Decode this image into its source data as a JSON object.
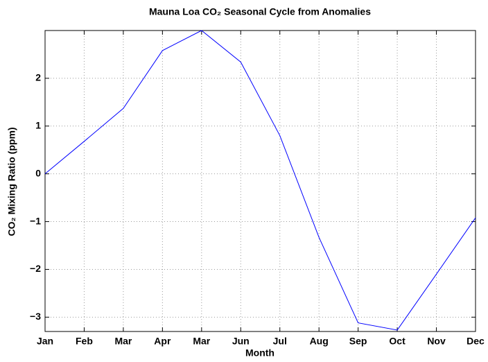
{
  "chart_data": {
    "type": "line",
    "title": "Mauna Loa CO₂ Seasonal Cycle from Anomalies",
    "x_label": "Month",
    "y_label": "CO₂ Mixing Ratio (ppm)",
    "categories": [
      "Jan",
      "Feb",
      "Mar",
      "Apr",
      "Mar",
      "Jun",
      "Jul",
      "Aug",
      "Sep",
      "Oct",
      "Nov",
      "Dec"
    ],
    "series": [
      {
        "color": "#0000ff",
        "values": [
          0,
          0.68,
          1.37,
          2.58,
          3.0,
          2.34,
          0.8,
          -1.33,
          -3.12,
          -3.27,
          -2.1,
          -0.92
        ]
      }
    ],
    "ylim": [
      -3.3,
      3.0
    ],
    "yticks": [
      {
        "value": -3,
        "label": "−3"
      },
      {
        "value": -2,
        "label": "−2"
      },
      {
        "value": -1,
        "label": "−1"
      },
      0,
      1,
      2
    ],
    "grid": true
  }
}
